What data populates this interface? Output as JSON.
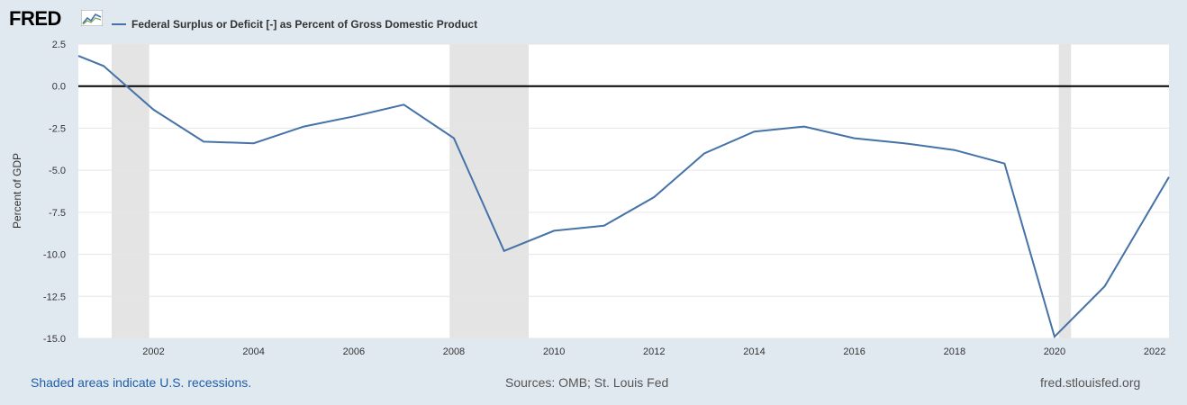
{
  "header": {
    "logo_text": "FRED"
  },
  "legend": {
    "series_name": "Federal Surplus or Deficit [-] as Percent of Gross Domestic Product",
    "color": "#4572a7"
  },
  "footer": {
    "recession_note": "Shaded areas indicate U.S. recessions.",
    "sources": "Sources: OMB; St. Louis Fed",
    "site": "fred.stlouisfed.org"
  },
  "chart_data": {
    "type": "line",
    "ylabel": "Percent of GDP",
    "xlabel": "",
    "ylim": [
      -15.0,
      2.5
    ],
    "yticks": [
      2.5,
      0.0,
      -2.5,
      -5.0,
      -7.5,
      -10.0,
      -12.5,
      -15.0
    ],
    "ytick_labels": [
      "2.5",
      "0.0",
      "-2.5",
      "-5.0",
      "-7.5",
      "-10.0",
      "-12.5",
      "-15.0"
    ],
    "xlim": [
      "2000-07-01",
      "2022-04-15"
    ],
    "xticks": [
      "2002",
      "2004",
      "2006",
      "2008",
      "2010",
      "2012",
      "2014",
      "2016",
      "2018",
      "2020",
      "2022"
    ],
    "grid": true,
    "zero_line": true,
    "line_color": "#4572a7",
    "recession_color": "#e4e4e4",
    "recessions": [
      [
        "2001-03-01",
        "2001-11-30"
      ],
      [
        "2007-12-01",
        "2009-06-30"
      ],
      [
        "2020-02-01",
        "2020-04-30"
      ]
    ],
    "series": [
      {
        "name": "Federal Surplus or Deficit [-] as Percent of Gross Domestic Product",
        "x": [
          "2000-07-01",
          "2001-01-01",
          "2002-01-01",
          "2003-01-01",
          "2004-01-01",
          "2005-01-01",
          "2006-01-01",
          "2007-01-01",
          "2008-01-01",
          "2009-01-01",
          "2010-01-01",
          "2011-01-01",
          "2012-01-01",
          "2013-01-01",
          "2014-01-01",
          "2015-01-01",
          "2016-01-01",
          "2017-01-01",
          "2018-01-01",
          "2019-01-01",
          "2020-01-01",
          "2021-01-01",
          "2022-04-15"
        ],
        "values": [
          1.8,
          1.2,
          -1.4,
          -3.3,
          -3.4,
          -2.4,
          -1.8,
          -1.1,
          -3.1,
          -9.8,
          -8.6,
          -8.3,
          -6.6,
          -4.0,
          -2.7,
          -2.4,
          -3.1,
          -3.4,
          -3.8,
          -4.6,
          -14.9,
          -11.9,
          -5.4
        ]
      }
    ]
  }
}
